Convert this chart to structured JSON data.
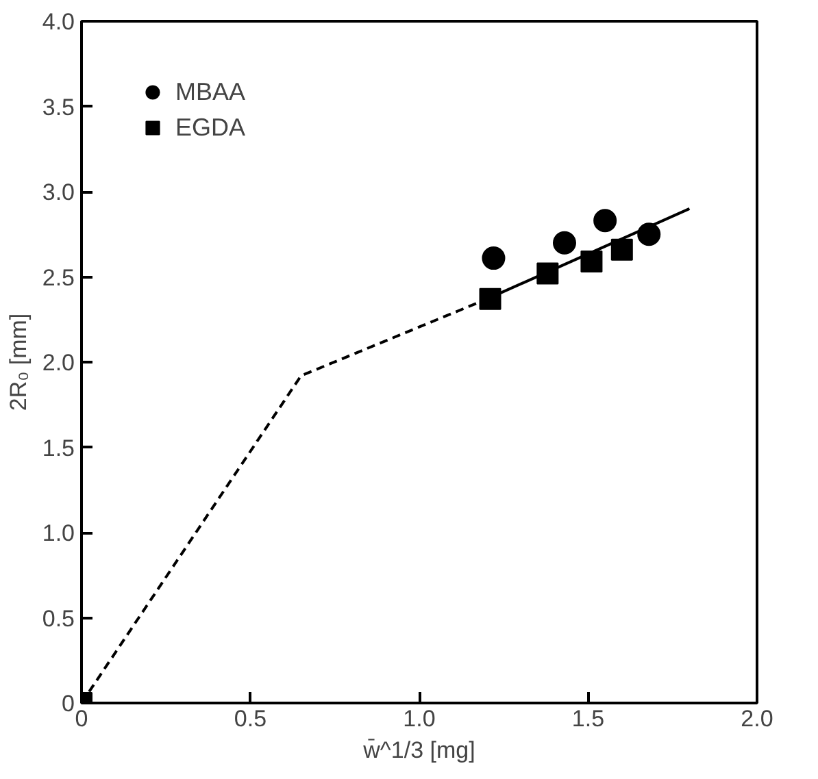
{
  "chart_data": {
    "type": "scatter",
    "xlabel": "w̄^1/3 [mg]",
    "ylabel": "2R₀ [mm]",
    "xlim": [
      0,
      2.0
    ],
    "ylim": [
      0,
      4.0
    ],
    "xticks": [
      0,
      {
        "value": 0.5,
        "label": "0.5"
      },
      {
        "value": 1,
        "label": "1.0"
      },
      {
        "value": 1.5,
        "label": "1.5"
      },
      {
        "value": 2,
        "label": "2.0"
      }
    ],
    "yticks": [
      0,
      {
        "value": 0.5,
        "label": "0.5"
      },
      {
        "value": 1,
        "label": "1.0"
      },
      {
        "value": 1.5,
        "label": "1.5"
      },
      {
        "value": 2,
        "label": "2.0"
      },
      {
        "value": 2.5,
        "label": "2.5"
      },
      {
        "value": 3,
        "label": "3.0"
      },
      {
        "value": 3.5,
        "label": "3.5"
      },
      {
        "value": 4,
        "label": "4.0"
      }
    ],
    "grid": false,
    "legend": "top left",
    "series": [
      {
        "name": "MBAA",
        "marker": "circle",
        "color": "#000000",
        "x": [
          1.22,
          1.43,
          1.55,
          1.68
        ],
        "values": [
          2.61,
          2.7,
          2.83,
          2.75
        ]
      },
      {
        "name": "EGDA",
        "marker": "square",
        "color": "#000000",
        "x": [
          0,
          1.21,
          1.38,
          1.51,
          1.6
        ],
        "values": [
          0,
          2.37,
          2.52,
          2.59,
          2.66
        ]
      },
      {
        "type": "line",
        "line_style": "dashed",
        "color": "#000000",
        "x": [
          0,
          0.65,
          1.2
        ],
        "values": [
          0,
          1.92,
          2.37
        ]
      },
      {
        "type": "line",
        "line_style": "solid",
        "color": "#000000",
        "x": [
          1.2,
          1.8
        ],
        "values": [
          2.37,
          2.9
        ]
      }
    ]
  }
}
